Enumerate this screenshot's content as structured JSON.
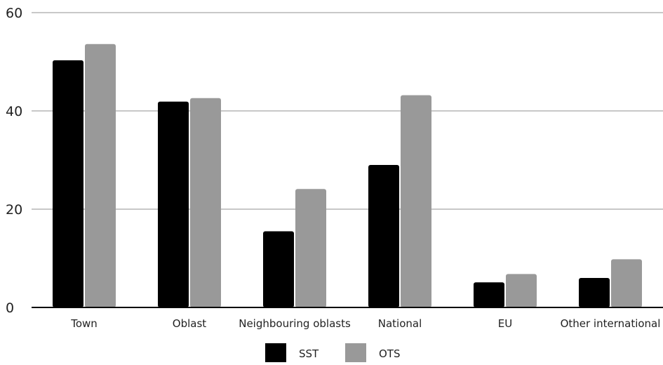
{
  "chart_data": {
    "type": "bar",
    "title": "",
    "xlabel": "",
    "ylabel": "",
    "ylim": [
      0,
      60
    ],
    "y_ticks": [
      0,
      20,
      40,
      60
    ],
    "grid": true,
    "legend_position": "bottom",
    "categories": [
      "Town",
      "Oblast",
      "Neighbouring oblasts",
      "National",
      "EU",
      "Other international"
    ],
    "series": [
      {
        "name": "SST",
        "color": "#000000",
        "values": [
          50.3,
          41.9,
          15.5,
          29.0,
          5.1,
          6.0
        ]
      },
      {
        "name": "OTS",
        "color": "#999999",
        "values": [
          53.6,
          42.6,
          24.1,
          43.2,
          6.8,
          9.8
        ]
      }
    ]
  }
}
